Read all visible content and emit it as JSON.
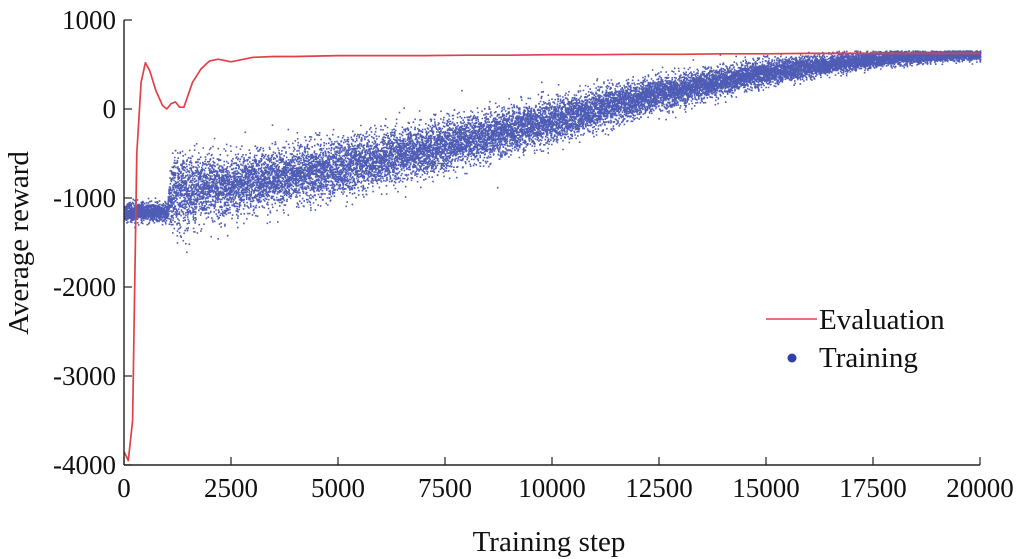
{
  "chart_data": {
    "type": "scatter",
    "title": "",
    "xlabel": "Training step",
    "ylabel": "Average reward",
    "xlim": [
      0,
      20000
    ],
    "ylim": [
      -4000,
      1000
    ],
    "xticks": [
      0,
      2500,
      5000,
      7500,
      10000,
      12500,
      15000,
      17500,
      20000
    ],
    "yticks": [
      1000,
      0,
      -1000,
      -2000,
      -3000,
      -4000
    ],
    "grid": false,
    "legend": {
      "position": "lower-right"
    },
    "series": [
      {
        "name": "Evaluation",
        "kind": "line",
        "color": "#e0404a",
        "x": [
          0,
          100,
          200,
          300,
          400,
          500,
          600,
          750,
          900,
          1000,
          1100,
          1200,
          1300,
          1400,
          1600,
          1800,
          2000,
          2200,
          2500,
          2800,
          3000,
          3500,
          4000,
          5000,
          6000,
          7000,
          8000,
          9000,
          10000,
          11000,
          12000,
          13000,
          14000,
          15000,
          16000,
          17000,
          18000,
          19000,
          20000
        ],
        "y": [
          -3850,
          -3950,
          -3500,
          -500,
          300,
          520,
          430,
          200,
          40,
          0,
          60,
          80,
          20,
          20,
          300,
          450,
          540,
          560,
          530,
          560,
          580,
          590,
          590,
          600,
          600,
          600,
          605,
          605,
          610,
          610,
          615,
          615,
          620,
          620,
          625,
          625,
          625,
          625,
          625
        ]
      },
      {
        "name": "Training",
        "kind": "scatter",
        "color": "#3040a8",
        "trend": {
          "x": [
            0,
            1000,
            1100,
            2500,
            5000,
            7500,
            10000,
            12500,
            15000,
            17500,
            19500,
            20000
          ],
          "mean": [
            -1150,
            -1150,
            -950,
            -850,
            -650,
            -400,
            -120,
            180,
            420,
            570,
            620,
            620
          ],
          "spread": [
            80,
            80,
            350,
            260,
            250,
            220,
            190,
            150,
            110,
            70,
            50,
            50
          ]
        },
        "point_count": 20000
      }
    ]
  }
}
